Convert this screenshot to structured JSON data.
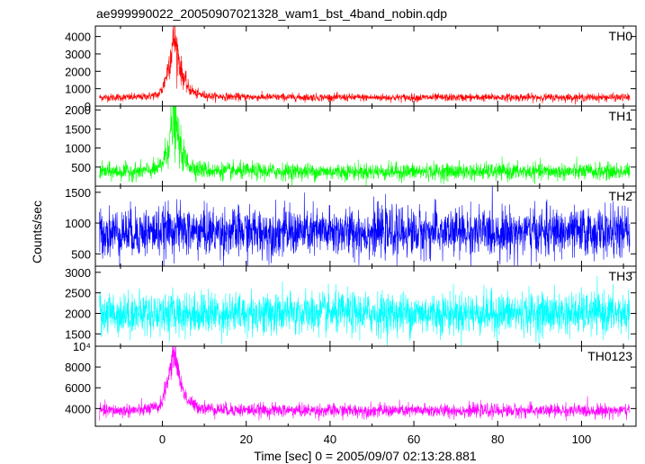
{
  "chart_data": {
    "type": "line",
    "title": "ae999990022_20050907021328_wam1_bst_4band_nobin.qdp",
    "xlabel": "Time [sec] 0 = 2005/09/07 02:13:28.881",
    "ylabel": "Counts/sec",
    "xlim": [
      -16,
      113
    ],
    "x_ticks": [
      0,
      20,
      40,
      60,
      80,
      100
    ],
    "x_tick_labels": [
      "0",
      "20",
      "40",
      "60",
      "80",
      "100"
    ],
    "grid": false,
    "legend": "none",
    "series": [
      {
        "name": "TH0",
        "color": "#ff0000",
        "ylim": [
          0,
          4600
        ],
        "y_ticks": [
          0,
          1000,
          2000,
          3000,
          4000
        ],
        "y_tick_labels": [
          "0",
          "1000",
          "2000",
          "3000",
          "4000"
        ],
        "baseline": 500,
        "noise": 130,
        "flare_peak": 4000,
        "flare_time": 2.8,
        "x": [
          -15,
          -10,
          -5,
          -1,
          0,
          1,
          2,
          2.8,
          3.5,
          4.5,
          6,
          8,
          12,
          20,
          40,
          60,
          80,
          100,
          111
        ],
        "values": [
          500,
          500,
          520,
          650,
          1000,
          1800,
          3000,
          4000,
          3200,
          2000,
          1100,
          700,
          560,
          520,
          500,
          490,
          500,
          500,
          500
        ]
      },
      {
        "name": "TH1",
        "color": "#00ff00",
        "ylim": [
          0,
          2100
        ],
        "y_ticks": [
          500,
          1000,
          1500,
          2000
        ],
        "y_tick_labels": [
          "500",
          "1000",
          "1500",
          "2000"
        ],
        "baseline": 380,
        "noise": 130,
        "flare_peak": 1800,
        "flare_time": 2.8,
        "x": [
          -15,
          -10,
          -5,
          -1,
          0,
          1,
          2,
          2.8,
          3.5,
          4.5,
          6,
          8,
          12,
          20,
          40,
          60,
          80,
          100,
          111
        ],
        "values": [
          380,
          380,
          390,
          450,
          600,
          900,
          1400,
          1800,
          1400,
          900,
          600,
          460,
          400,
          390,
          380,
          380,
          380,
          380,
          380
        ]
      },
      {
        "name": "TH2",
        "color": "#0000ff",
        "ylim": [
          300,
          1600
        ],
        "y_ticks": [
          500,
          1000,
          1500
        ],
        "y_tick_labels": [
          "500",
          "1000",
          "1500"
        ],
        "baseline": 850,
        "noise": 230,
        "flare_peak": 920,
        "flare_time": 2.8,
        "x": [
          -15,
          -10,
          -5,
          0,
          2.8,
          6,
          20,
          40,
          60,
          80,
          100,
          111
        ],
        "values": [
          850,
          850,
          850,
          860,
          920,
          860,
          850,
          850,
          850,
          850,
          850,
          850
        ]
      },
      {
        "name": "TH3",
        "color": "#00ffff",
        "ylim": [
          1200,
          3150
        ],
        "y_ticks": [
          1500,
          2000,
          2500,
          3000
        ],
        "y_tick_labels": [
          "1500",
          "2000",
          "2500",
          "3000"
        ],
        "baseline": 2000,
        "noise": 300,
        "flare_peak": 2000,
        "flare_time": 2.8,
        "x": [
          -15,
          -10,
          -5,
          0,
          2.8,
          6,
          20,
          40,
          60,
          80,
          100,
          111
        ],
        "values": [
          2000,
          2000,
          2000,
          2000,
          2000,
          2000,
          2000,
          2000,
          2000,
          2000,
          2000,
          2000
        ]
      },
      {
        "name": "TH0123",
        "color": "#ff00ff",
        "ylim": [
          2300,
          10000
        ],
        "y_ticks": [
          4000,
          6000,
          8000,
          10000
        ],
        "y_tick_labels": [
          "4000",
          "6000",
          "8000",
          "10⁴"
        ],
        "baseline": 3800,
        "noise": 380,
        "flare_peak": 9500,
        "flare_time": 2.8,
        "x": [
          -15,
          -10,
          -5,
          -1,
          0,
          1,
          2,
          2.8,
          3.5,
          4.5,
          6,
          8,
          12,
          20,
          40,
          60,
          80,
          100,
          111
        ],
        "values": [
          3800,
          3800,
          3850,
          4100,
          4800,
          6300,
          8000,
          9500,
          8200,
          6200,
          4800,
          4200,
          3950,
          3850,
          3800,
          3800,
          3800,
          3800,
          3800
        ]
      }
    ]
  }
}
